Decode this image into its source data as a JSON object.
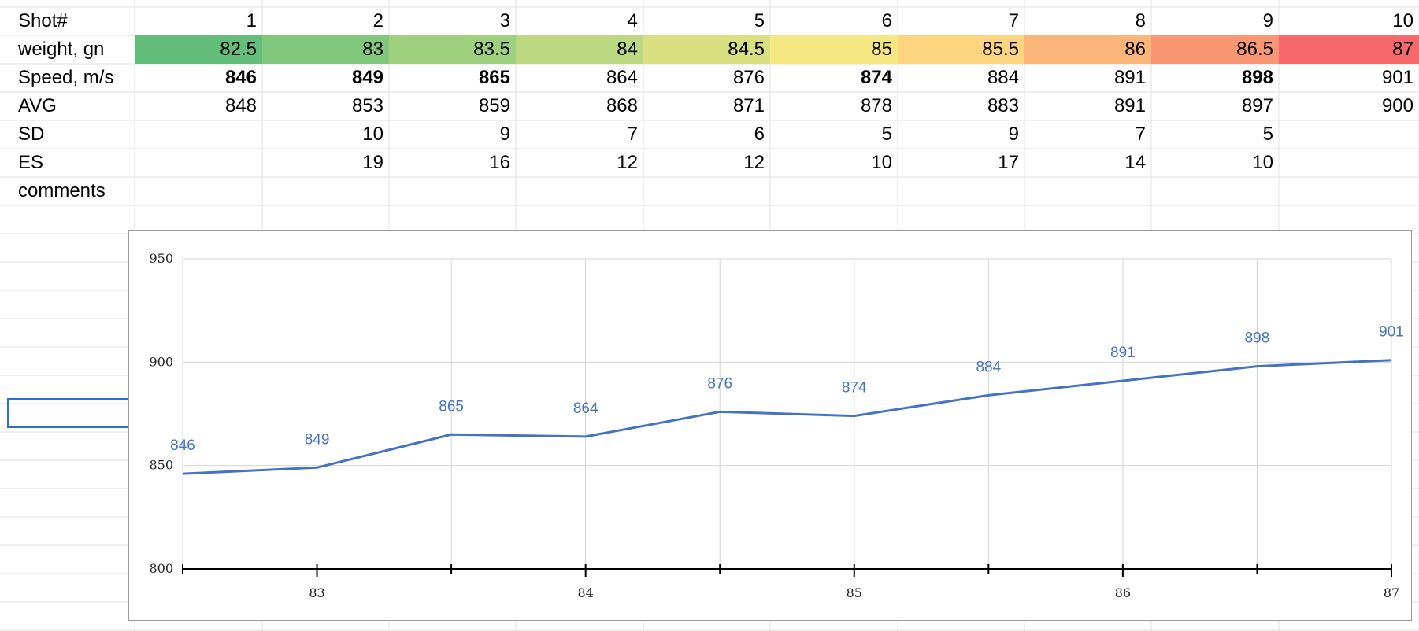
{
  "sheet": {
    "row_labels": [
      "Shot#",
      "weight, gn",
      "Speed, m/s",
      "AVG",
      "SD",
      "ES",
      "comments"
    ],
    "rows": {
      "shot": [
        "1",
        "2",
        "3",
        "4",
        "5",
        "6",
        "7",
        "8",
        "9",
        "10"
      ],
      "weight": [
        "82.5",
        "83",
        "83.5",
        "84",
        "84.5",
        "85",
        "85.5",
        "86",
        "86.5",
        "87"
      ],
      "speed": [
        "846",
        "849",
        "865",
        "864",
        "876",
        "874",
        "884",
        "891",
        "898",
        "901"
      ],
      "avg": [
        "848",
        "853",
        "859",
        "868",
        "871",
        "878",
        "883",
        "891",
        "897",
        "900"
      ],
      "sd": [
        "",
        "10",
        "9",
        "7",
        "6",
        "5",
        "9",
        "7",
        "5",
        ""
      ],
      "es": [
        "",
        "19",
        "16",
        "12",
        "12",
        "10",
        "17",
        "14",
        "10",
        ""
      ]
    },
    "speed_bold": [
      true,
      true,
      true,
      false,
      false,
      true,
      false,
      false,
      true,
      false
    ],
    "weight_colors": [
      "#63be7b",
      "#81c77c",
      "#9fd07e",
      "#bcd881",
      "#d9e082",
      "#f5e883",
      "#fdd47f",
      "#fcb67a",
      "#f99674",
      "#f8696b"
    ]
  },
  "chart_data": {
    "type": "line",
    "x": [
      82.5,
      83,
      83.5,
      84,
      84.5,
      85,
      85.5,
      86,
      86.5,
      87
    ],
    "series": [
      {
        "values": [
          846,
          849,
          865,
          864,
          876,
          874,
          884,
          891,
          898,
          901
        ],
        "color": "#4472c4"
      }
    ],
    "data_labels": [
      "846",
      "849",
      "865",
      "864",
      "876",
      "874",
      "884",
      "891",
      "898",
      "901"
    ],
    "ylim": [
      800,
      950
    ],
    "yticks": [
      "800",
      "850",
      "900",
      "950"
    ],
    "xticks": [
      "83",
      "84",
      "85",
      "86",
      "87"
    ],
    "grid": true
  }
}
